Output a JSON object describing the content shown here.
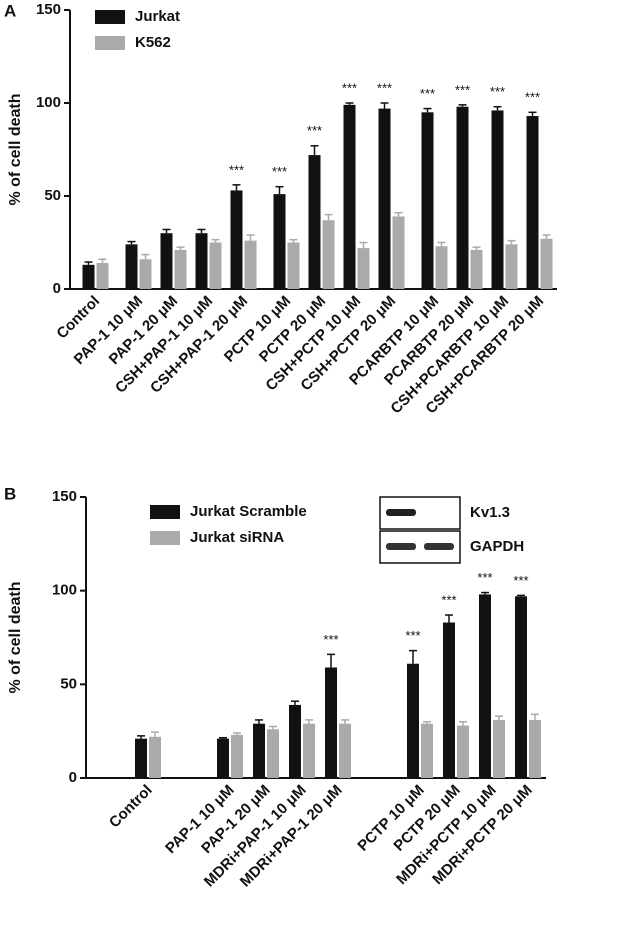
{
  "chart_data": [
    {
      "type": "bar",
      "panel": "A",
      "ylabel": "% of cell death",
      "categories": [
        "Control",
        null,
        "PAP-1 10 μM",
        "PAP-1 20 μM",
        "CSH+PAP-1 10 μM",
        "CSH+PAP-1 20 μM",
        null,
        "PCTP 10 μM",
        "PCTP 20 μM",
        "CSH+PCTP 10 μM",
        "CSH+PCTP 20 μM",
        null,
        "PCARBTP 10 μM",
        "PCARBTP 20 μM",
        "CSH+PCARBTP 10 μM",
        "CSH+PCARBTP 20 μM"
      ],
      "series": [
        {
          "name": "Jurkat",
          "color": "#111111",
          "values": [
            13,
            null,
            24,
            30,
            30,
            53,
            null,
            51,
            72,
            99,
            97,
            null,
            95,
            98,
            96,
            93
          ],
          "errors": [
            1.5,
            null,
            1.5,
            2,
            2,
            3,
            null,
            4,
            5,
            1,
            3,
            null,
            2,
            1,
            2,
            2
          ]
        },
        {
          "name": "K562",
          "color": "#aaaaaa",
          "values": [
            14,
            null,
            16,
            21,
            25,
            26,
            null,
            25,
            37,
            22,
            39,
            null,
            23,
            21,
            24,
            27
          ],
          "errors": [
            2,
            null,
            2.5,
            1.5,
            1.5,
            3,
            null,
            1.5,
            3,
            3,
            2,
            null,
            2,
            1.5,
            2,
            2
          ]
        }
      ],
      "markers": [
        null,
        null,
        null,
        null,
        null,
        "***",
        null,
        "***",
        "***",
        "***",
        "***",
        null,
        "***",
        "***",
        "***",
        "***"
      ],
      "ylim": [
        0,
        150
      ],
      "yticks": [
        0,
        50,
        100,
        150
      ]
    },
    {
      "type": "bar",
      "panel": "B",
      "ylabel": "% of cell death",
      "categories": [
        "Control",
        null,
        "PAP-1 10 μM",
        "PAP-1 20 μM",
        "MDRi+PAP-1 10 μM",
        "MDRi+PAP-1 20 μM",
        null,
        "PCTP 10 μM",
        "PCTP 20 μM",
        "MDRi+PCTP 10 μM",
        "MDRi+PCTP 20 μM"
      ],
      "series": [
        {
          "name": "Jurkat Scramble",
          "color": "#111111",
          "values": [
            21,
            null,
            21,
            29,
            39,
            59,
            null,
            61,
            83,
            98,
            97
          ],
          "errors": [
            1.5,
            null,
            0.5,
            2,
            2,
            7,
            null,
            7,
            4,
            1,
            0.5
          ]
        },
        {
          "name": "Jurkat siRNA",
          "color": "#aaaaaa",
          "values": [
            22,
            null,
            23,
            26,
            29,
            29,
            null,
            29,
            28,
            31,
            31
          ],
          "errors": [
            2.5,
            null,
            1,
            1.5,
            2,
            2,
            null,
            1,
            2,
            2,
            3
          ]
        }
      ],
      "markers": [
        null,
        null,
        null,
        null,
        null,
        "***",
        null,
        "***",
        "***",
        "***",
        "***"
      ],
      "ylim": [
        0,
        150
      ],
      "yticks": [
        0,
        50,
        100,
        150
      ]
    }
  ],
  "inset": {
    "labels": [
      "Kv1.3",
      "GAPDH"
    ]
  }
}
